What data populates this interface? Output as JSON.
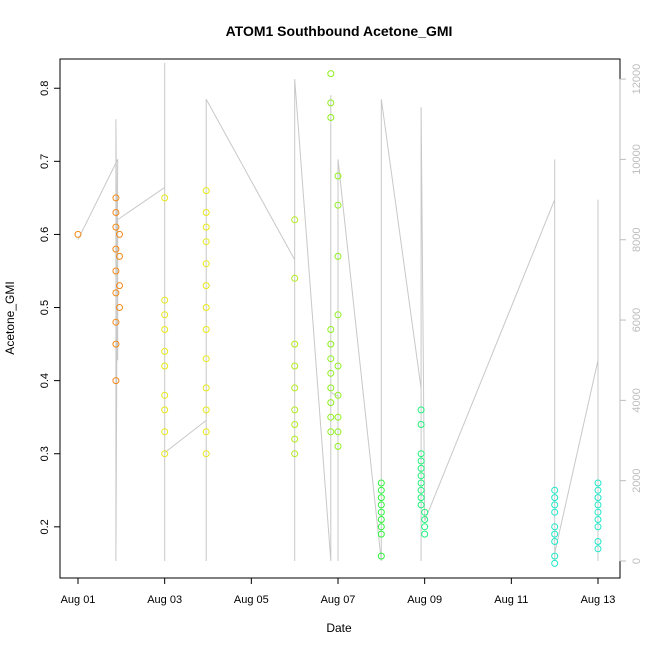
{
  "chart_data": {
    "type": "scatter",
    "title": "ATOM1 Southbound Acetone_GMI",
    "xlabel": "Date",
    "ylabel": "Acetone_GMI",
    "xlim": [
      "2016-08-01",
      "2016-08-13"
    ],
    "ylim": [
      0.13,
      0.84
    ],
    "y2lim": [
      0,
      12500
    ],
    "x_ticks": [
      {
        "value": "2016-08-01",
        "label": "Aug 01"
      },
      {
        "value": "2016-08-03",
        "label": "Aug 03"
      },
      {
        "value": "2016-08-05",
        "label": "Aug 05"
      },
      {
        "value": "2016-08-07",
        "label": "Aug 07"
      },
      {
        "value": "2016-08-09",
        "label": "Aug 09"
      },
      {
        "value": "2016-08-11",
        "label": "Aug 11"
      },
      {
        "value": "2016-08-13",
        "label": "Aug 13"
      }
    ],
    "y_ticks": [
      "0.2",
      "0.3",
      "0.4",
      "0.5",
      "0.6",
      "0.7",
      "0.8"
    ],
    "y2_ticks": [
      "0",
      "2000",
      "4000",
      "6000",
      "8000",
      "10000",
      "12000"
    ],
    "grid": false,
    "color_scale": "orange-to-cyan by date",
    "colors": {
      "altitude_line": "#c8c8c8",
      "y2_axis": "#bdbdbd"
    },
    "series": [
      {
        "values": [
          {
            "x": "2016-08-01",
            "y": 0.6,
            "color": "#f28a1a"
          },
          {
            "x": "2016-08-01T21:00",
            "y": 0.65,
            "color": "#f28a1a"
          },
          {
            "x": "2016-08-01T21:00",
            "y": 0.63,
            "color": "#f28a1a"
          },
          {
            "x": "2016-08-01T21:00",
            "y": 0.61,
            "color": "#f28a1a"
          },
          {
            "x": "2016-08-01T21:00",
            "y": 0.58,
            "color": "#f28a1a"
          },
          {
            "x": "2016-08-01T21:00",
            "y": 0.55,
            "color": "#f28a1a"
          },
          {
            "x": "2016-08-01T21:00",
            "y": 0.52,
            "color": "#f28a1a"
          },
          {
            "x": "2016-08-01T21:00",
            "y": 0.48,
            "color": "#f28a1a"
          },
          {
            "x": "2016-08-01T21:00",
            "y": 0.45,
            "color": "#f28a1a"
          },
          {
            "x": "2016-08-01T21:00",
            "y": 0.4,
            "color": "#f28a1a"
          },
          {
            "x": "2016-08-01T23:00",
            "y": 0.6,
            "color": "#f28a1a"
          },
          {
            "x": "2016-08-01T23:00",
            "y": 0.57,
            "color": "#f28a1a"
          },
          {
            "x": "2016-08-01T23:00",
            "y": 0.53,
            "color": "#f28a1a"
          },
          {
            "x": "2016-08-01T23:00",
            "y": 0.5,
            "color": "#f28a1a"
          },
          {
            "x": "2016-08-03",
            "y": 0.65,
            "color": "#e8e818"
          },
          {
            "x": "2016-08-03",
            "y": 0.51,
            "color": "#e8e818"
          },
          {
            "x": "2016-08-03",
            "y": 0.49,
            "color": "#e8e818"
          },
          {
            "x": "2016-08-03",
            "y": 0.47,
            "color": "#e8e818"
          },
          {
            "x": "2016-08-03",
            "y": 0.44,
            "color": "#e8e818"
          },
          {
            "x": "2016-08-03",
            "y": 0.42,
            "color": "#e8e818"
          },
          {
            "x": "2016-08-03",
            "y": 0.38,
            "color": "#e8e818"
          },
          {
            "x": "2016-08-03",
            "y": 0.36,
            "color": "#e8e818"
          },
          {
            "x": "2016-08-03",
            "y": 0.33,
            "color": "#e8e818"
          },
          {
            "x": "2016-08-03",
            "y": 0.3,
            "color": "#e8e818"
          },
          {
            "x": "2016-08-03T23:00",
            "y": 0.66,
            "color": "#e8e818"
          },
          {
            "x": "2016-08-03T23:00",
            "y": 0.63,
            "color": "#e8e818"
          },
          {
            "x": "2016-08-03T23:00",
            "y": 0.61,
            "color": "#e8e818"
          },
          {
            "x": "2016-08-03T23:00",
            "y": 0.59,
            "color": "#e8e818"
          },
          {
            "x": "2016-08-03T23:00",
            "y": 0.56,
            "color": "#e8e818"
          },
          {
            "x": "2016-08-03T23:00",
            "y": 0.53,
            "color": "#e8e818"
          },
          {
            "x": "2016-08-03T23:00",
            "y": 0.5,
            "color": "#e8e818"
          },
          {
            "x": "2016-08-03T23:00",
            "y": 0.47,
            "color": "#e8e818"
          },
          {
            "x": "2016-08-03T23:00",
            "y": 0.43,
            "color": "#e8e818"
          },
          {
            "x": "2016-08-03T23:00",
            "y": 0.39,
            "color": "#e8e818"
          },
          {
            "x": "2016-08-03T23:00",
            "y": 0.36,
            "color": "#e8e818"
          },
          {
            "x": "2016-08-03T23:00",
            "y": 0.33,
            "color": "#e8e818"
          },
          {
            "x": "2016-08-03T23:00",
            "y": 0.3,
            "color": "#e8e818"
          },
          {
            "x": "2016-08-06",
            "y": 0.62,
            "color": "#b4ec1e"
          },
          {
            "x": "2016-08-06",
            "y": 0.54,
            "color": "#b4ec1e"
          },
          {
            "x": "2016-08-06",
            "y": 0.45,
            "color": "#b4ec1e"
          },
          {
            "x": "2016-08-06",
            "y": 0.42,
            "color": "#b4ec1e"
          },
          {
            "x": "2016-08-06",
            "y": 0.39,
            "color": "#b4ec1e"
          },
          {
            "x": "2016-08-06",
            "y": 0.36,
            "color": "#b4ec1e"
          },
          {
            "x": "2016-08-06",
            "y": 0.34,
            "color": "#b4ec1e"
          },
          {
            "x": "2016-08-06",
            "y": 0.32,
            "color": "#b4ec1e"
          },
          {
            "x": "2016-08-06",
            "y": 0.3,
            "color": "#b4ec1e"
          },
          {
            "x": "2016-08-06T20:00",
            "y": 0.82,
            "color": "#8ef01e"
          },
          {
            "x": "2016-08-06T20:00",
            "y": 0.78,
            "color": "#8ef01e"
          },
          {
            "x": "2016-08-06T20:00",
            "y": 0.76,
            "color": "#8ef01e"
          },
          {
            "x": "2016-08-06T20:00",
            "y": 0.47,
            "color": "#8ef01e"
          },
          {
            "x": "2016-08-06T20:00",
            "y": 0.45,
            "color": "#8ef01e"
          },
          {
            "x": "2016-08-06T20:00",
            "y": 0.43,
            "color": "#8ef01e"
          },
          {
            "x": "2016-08-06T20:00",
            "y": 0.41,
            "color": "#8ef01e"
          },
          {
            "x": "2016-08-06T20:00",
            "y": 0.39,
            "color": "#8ef01e"
          },
          {
            "x": "2016-08-06T20:00",
            "y": 0.37,
            "color": "#8ef01e"
          },
          {
            "x": "2016-08-06T20:00",
            "y": 0.35,
            "color": "#8ef01e"
          },
          {
            "x": "2016-08-06T20:00",
            "y": 0.33,
            "color": "#8ef01e"
          },
          {
            "x": "2016-08-07",
            "y": 0.68,
            "color": "#8ef01e"
          },
          {
            "x": "2016-08-07",
            "y": 0.64,
            "color": "#8ef01e"
          },
          {
            "x": "2016-08-07",
            "y": 0.57,
            "color": "#8ef01e"
          },
          {
            "x": "2016-08-07",
            "y": 0.49,
            "color": "#8ef01e"
          },
          {
            "x": "2016-08-07",
            "y": 0.42,
            "color": "#8ef01e"
          },
          {
            "x": "2016-08-07",
            "y": 0.38,
            "color": "#8ef01e"
          },
          {
            "x": "2016-08-07",
            "y": 0.35,
            "color": "#8ef01e"
          },
          {
            "x": "2016-08-07",
            "y": 0.33,
            "color": "#8ef01e"
          },
          {
            "x": "2016-08-07",
            "y": 0.31,
            "color": "#8ef01e"
          },
          {
            "x": "2016-08-08",
            "y": 0.26,
            "color": "#2ef23c"
          },
          {
            "x": "2016-08-08",
            "y": 0.25,
            "color": "#2ef23c"
          },
          {
            "x": "2016-08-08",
            "y": 0.24,
            "color": "#2ef23c"
          },
          {
            "x": "2016-08-08",
            "y": 0.23,
            "color": "#2ef23c"
          },
          {
            "x": "2016-08-08",
            "y": 0.22,
            "color": "#2ef23c"
          },
          {
            "x": "2016-08-08",
            "y": 0.21,
            "color": "#2ef23c"
          },
          {
            "x": "2016-08-08",
            "y": 0.2,
            "color": "#2ef23c"
          },
          {
            "x": "2016-08-08",
            "y": 0.19,
            "color": "#2ef23c"
          },
          {
            "x": "2016-08-08",
            "y": 0.16,
            "color": "#2ef23c"
          },
          {
            "x": "2016-08-08T22:00",
            "y": 0.36,
            "color": "#1ef27a"
          },
          {
            "x": "2016-08-08T22:00",
            "y": 0.34,
            "color": "#1ef27a"
          },
          {
            "x": "2016-08-08T22:00",
            "y": 0.3,
            "color": "#1ef27a"
          },
          {
            "x": "2016-08-08T22:00",
            "y": 0.29,
            "color": "#1ef27a"
          },
          {
            "x": "2016-08-08T22:00",
            "y": 0.28,
            "color": "#1ef27a"
          },
          {
            "x": "2016-08-08T22:00",
            "y": 0.27,
            "color": "#1ef27a"
          },
          {
            "x": "2016-08-08T22:00",
            "y": 0.26,
            "color": "#1ef27a"
          },
          {
            "x": "2016-08-08T22:00",
            "y": 0.25,
            "color": "#1ef27a"
          },
          {
            "x": "2016-08-08T22:00",
            "y": 0.24,
            "color": "#1ef27a"
          },
          {
            "x": "2016-08-08T22:00",
            "y": 0.23,
            "color": "#1ef27a"
          },
          {
            "x": "2016-08-09",
            "y": 0.22,
            "color": "#1ef27a"
          },
          {
            "x": "2016-08-09",
            "y": 0.21,
            "color": "#1ef27a"
          },
          {
            "x": "2016-08-09",
            "y": 0.2,
            "color": "#1ef27a"
          },
          {
            "x": "2016-08-09",
            "y": 0.19,
            "color": "#1ef27a"
          },
          {
            "x": "2016-08-12",
            "y": 0.25,
            "color": "#1ee8c8"
          },
          {
            "x": "2016-08-12",
            "y": 0.24,
            "color": "#1ee8c8"
          },
          {
            "x": "2016-08-12",
            "y": 0.23,
            "color": "#1ee8c8"
          },
          {
            "x": "2016-08-12",
            "y": 0.22,
            "color": "#1ee8c8"
          },
          {
            "x": "2016-08-12",
            "y": 0.2,
            "color": "#1ee8c8"
          },
          {
            "x": "2016-08-12",
            "y": 0.19,
            "color": "#1ee8c8"
          },
          {
            "x": "2016-08-12",
            "y": 0.18,
            "color": "#1ee8c8"
          },
          {
            "x": "2016-08-12",
            "y": 0.16,
            "color": "#1ee8c8"
          },
          {
            "x": "2016-08-12",
            "y": 0.15,
            "color": "#1ee8c8"
          },
          {
            "x": "2016-08-13",
            "y": 0.26,
            "color": "#1ee8c8"
          },
          {
            "x": "2016-08-13",
            "y": 0.25,
            "color": "#1ee8c8"
          },
          {
            "x": "2016-08-13",
            "y": 0.24,
            "color": "#1ee8c8"
          },
          {
            "x": "2016-08-13",
            "y": 0.23,
            "color": "#1ee8c8"
          },
          {
            "x": "2016-08-13",
            "y": 0.22,
            "color": "#1ee8c8"
          },
          {
            "x": "2016-08-13",
            "y": 0.21,
            "color": "#1ee8c8"
          },
          {
            "x": "2016-08-13",
            "y": 0.2,
            "color": "#1ee8c8"
          },
          {
            "x": "2016-08-13",
            "y": 0.18,
            "color": "#1ee8c8"
          },
          {
            "x": "2016-08-13",
            "y": 0.17,
            "color": "#1ee8c8"
          }
        ]
      },
      {
        "axis": "right",
        "type": "line",
        "values": [
          {
            "x": "2016-08-01",
            "y": 8000
          },
          {
            "x": "2016-08-01T22:00",
            "y": 10000
          },
          {
            "x": "2016-08-01T21:00",
            "y": 0
          },
          {
            "x": "2016-08-01T21:00",
            "y": 11000
          },
          {
            "x": "2016-08-01T22:00",
            "y": 5000
          },
          {
            "x": "2016-08-01T22:00",
            "y": 8500
          },
          {
            "x": "2016-08-03",
            "y": 9300
          },
          {
            "x": "2016-08-03",
            "y": 0
          },
          {
            "x": "2016-08-03",
            "y": 12400
          },
          {
            "x": "2016-08-03",
            "y": 2700
          },
          {
            "x": "2016-08-03T23:00",
            "y": 3500
          },
          {
            "x": "2016-08-03T23:00",
            "y": 0
          },
          {
            "x": "2016-08-03T23:00",
            "y": 11500
          },
          {
            "x": "2016-08-06",
            "y": 7500
          },
          {
            "x": "2016-08-06",
            "y": 0
          },
          {
            "x": "2016-08-06",
            "y": 12000
          },
          {
            "x": "2016-08-06T20:00",
            "y": 0
          },
          {
            "x": "2016-08-06T20:00",
            "y": 11600
          },
          {
            "x": "2016-08-06T20:00",
            "y": 4200
          },
          {
            "x": "2016-08-07",
            "y": 4100
          },
          {
            "x": "2016-08-07",
            "y": 0
          },
          {
            "x": "2016-08-07",
            "y": 10000
          },
          {
            "x": "2016-08-08",
            "y": 0
          },
          {
            "x": "2016-08-08",
            "y": 11500
          },
          {
            "x": "2016-08-08T22:00",
            "y": 4300
          },
          {
            "x": "2016-08-08T22:00",
            "y": 0
          },
          {
            "x": "2016-08-08T22:00",
            "y": 11300
          },
          {
            "x": "2016-08-09",
            "y": 1000
          },
          {
            "x": "2016-08-12",
            "y": 9000
          },
          {
            "x": "2016-08-12",
            "y": 0
          },
          {
            "x": "2016-08-12",
            "y": 10000
          },
          {
            "x": "2016-08-12",
            "y": 200
          },
          {
            "x": "2016-08-13",
            "y": 5000
          },
          {
            "x": "2016-08-13",
            "y": 9000
          },
          {
            "x": "2016-08-13",
            "y": 0
          }
        ]
      }
    ]
  }
}
